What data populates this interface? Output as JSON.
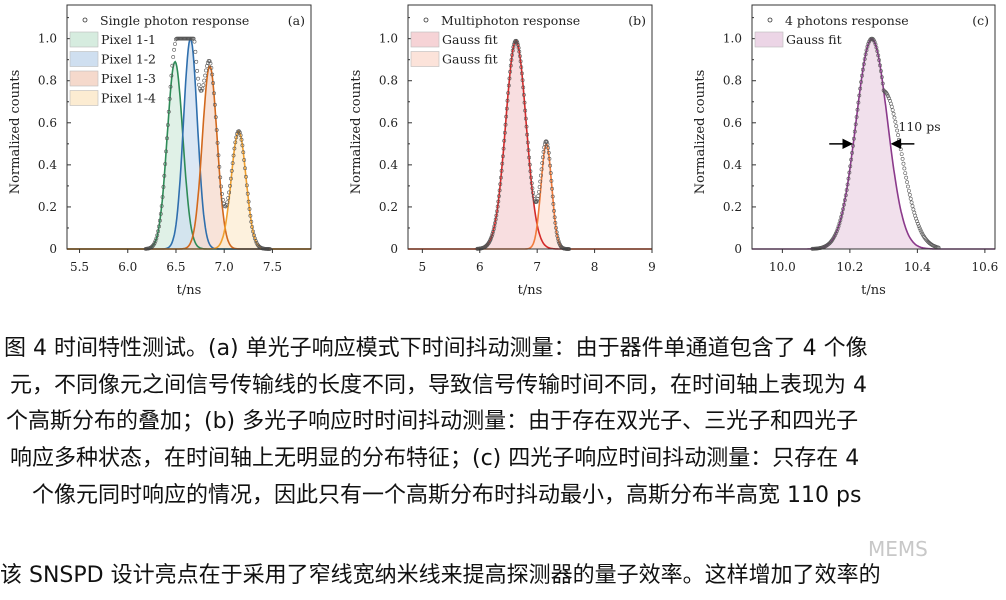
{
  "chart_data": [
    {
      "type": "scatter",
      "panel_label": "(a)",
      "xlabel": "t/ns",
      "ylabel": "Normalized counts",
      "xlim": [
        5.37,
        7.9
      ],
      "ylim": [
        0,
        1.16
      ],
      "xticks": [
        "5.5",
        "6.0",
        "6.5",
        "7.0",
        "7.5"
      ],
      "yticks": [
        "0",
        "0.2",
        "0.4",
        "0.6",
        "0.8",
        "1.0"
      ],
      "grid": false,
      "legend_position": "top-left",
      "data_series": {
        "name": "Single photon response",
        "color": "#555555"
      },
      "fits": [
        {
          "name": "Pixel 1-1",
          "center": 6.49,
          "amplitude": 0.89,
          "fwhm": 0.19,
          "line_color": "#2e8b57",
          "fill_color": "#d6ecdf"
        },
        {
          "name": "Pixel 1-2",
          "center": 6.65,
          "amplitude": 1.0,
          "fwhm": 0.17,
          "line_color": "#2f6fad",
          "fill_color": "#cfdff0"
        },
        {
          "name": "Pixel 1-3",
          "center": 6.85,
          "amplitude": 0.87,
          "fwhm": 0.18,
          "line_color": "#d2691e",
          "fill_color": "#f5d9cc"
        },
        {
          "name": "Pixel 1-4",
          "center": 7.15,
          "amplitude": 0.56,
          "fwhm": 0.18,
          "line_color": "#f0a030",
          "fill_color": "#fcecd2"
        }
      ]
    },
    {
      "type": "scatter",
      "panel_label": "(b)",
      "xlabel": "t/ns",
      "ylabel": "Normalized counts",
      "xlim": [
        4.75,
        9
      ],
      "ylim": [
        0,
        1.16
      ],
      "xticks": [
        "5",
        "6",
        "7",
        "8",
        "9"
      ],
      "yticks": [
        "0",
        "0.2",
        "0.4",
        "0.6",
        "0.8",
        "1.0"
      ],
      "grid": false,
      "legend_position": "top-left",
      "data_series": {
        "name": "Multiphoton response",
        "color": "#555555"
      },
      "fits": [
        {
          "name": "Gauss fit",
          "center": 6.63,
          "amplitude": 0.99,
          "fwhm": 0.42,
          "line_color": "#d42a2a",
          "fill_color": "#f6d3d6"
        },
        {
          "name": "Gauss fit",
          "center": 7.16,
          "amplitude": 0.5,
          "fwhm": 0.22,
          "line_color": "#f07a3a",
          "fill_color": "#fce3da"
        }
      ]
    },
    {
      "type": "scatter",
      "panel_label": "(c)",
      "xlabel": "t/ns",
      "ylabel": "Normalized counts",
      "xlim": [
        9.91,
        10.63
      ],
      "ylim": [
        0,
        1.16
      ],
      "xticks": [
        "10.0",
        "10.2",
        "10.4",
        "10.6"
      ],
      "yticks": [
        "0",
        "0.2",
        "0.4",
        "0.6",
        "0.8",
        "1.0"
      ],
      "grid": false,
      "legend_position": "top-left",
      "data_series": {
        "name": "4 photons response",
        "color": "#555555"
      },
      "fits": [
        {
          "name": "Gauss fit",
          "center": 10.265,
          "amplitude": 1.0,
          "fwhm": 0.11,
          "line_color": "#8b3a8b",
          "fill_color": "#ecd5e6"
        }
      ],
      "annotation": {
        "text": "110 ps",
        "y": 0.5
      }
    }
  ],
  "caption": {
    "lines": [
      "图 4  时间特性测试。(a) 单光子响应模式下时间抖动测量：由于器件单通道包含了 4 个像",
      "元，不同像元之间信号传输线的长度不同，导致信号传输时间不同，在时间轴上表现为 4",
      "个高斯分布的叠加；(b) 多光子响应时时间抖动测量：由于存在双光子、三光子和四光子",
      "响应多种状态，在时间轴上无明显的分布特征；(c) 四光子响应时间抖动测量：只存在 4",
      "个像元同时响应的情况，因此只有一个高斯分布时抖动最小，高斯分布半高宽 110 ps"
    ]
  },
  "body": {
    "line1": "该 SNSPD 设计亮点在于采用了窄线宽纳米线来提高探测器的量子效率。这样增加了效率的"
  },
  "watermark": "MEMS"
}
